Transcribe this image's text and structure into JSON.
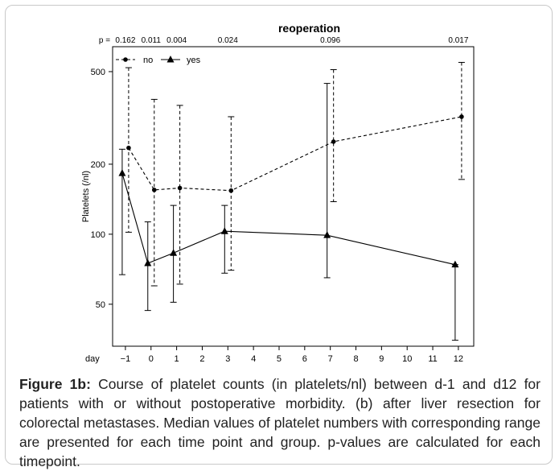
{
  "figure": {
    "caption_label": "Figure 1b:",
    "caption_text": " Course of platelet counts (in platelets/nl) between d-1 and d12 for patients with or without  postoperative morbidity. (b) after liver resection for colorectal metastases. Median values of platelet numbers with corresponding range are presented for each time point and group. p-values are calculated for each timepoint."
  },
  "chart_data": {
    "type": "line",
    "title": "reoperation",
    "ylabel": "Platelets (/nl)",
    "xlabel": "day",
    "y_scale": "log",
    "ylim": [
      33,
      640
    ],
    "xlim": [
      -1.5,
      12.6
    ],
    "x_ticks": [
      -1,
      0,
      1,
      2,
      3,
      4,
      5,
      6,
      7,
      8,
      9,
      10,
      11,
      12
    ],
    "x_tick_labels": [
      "−1",
      "0",
      "1",
      "2",
      "3",
      "4",
      "5",
      "6",
      "7",
      "8",
      "9",
      "10",
      "11",
      "12"
    ],
    "y_ticks": [
      50,
      100,
      200,
      500
    ],
    "p_label": "p =",
    "p_values": [
      {
        "day": -1,
        "label": "0.162"
      },
      {
        "day": 0,
        "label": "0.011"
      },
      {
        "day": 1,
        "label": "0.004"
      },
      {
        "day": 3,
        "label": "0.024"
      },
      {
        "day": 7,
        "label": "0.096"
      },
      {
        "day": 12,
        "label": "0.017"
      }
    ],
    "legend": {
      "placement": "top-left",
      "entries": [
        "no",
        "yes"
      ]
    },
    "series": [
      {
        "name": "no",
        "marker": "circle",
        "line": "dashed",
        "points": [
          {
            "x": -1,
            "y": 235,
            "low": 102,
            "high": 520
          },
          {
            "x": 0,
            "y": 155,
            "low": 60,
            "high": 380
          },
          {
            "x": 1,
            "y": 158,
            "low": 61,
            "high": 358
          },
          {
            "x": 3,
            "y": 154,
            "low": 70,
            "high": 320
          },
          {
            "x": 7,
            "y": 250,
            "low": 138,
            "high": 510
          },
          {
            "x": 12,
            "y": 320,
            "low": 172,
            "high": 548
          }
        ]
      },
      {
        "name": "yes",
        "marker": "triangle",
        "line": "solid",
        "points": [
          {
            "x": -1,
            "y": 183,
            "low": 67,
            "high": 232
          },
          {
            "x": 0,
            "y": 75,
            "low": 47,
            "high": 113
          },
          {
            "x": 1,
            "y": 83,
            "low": 51,
            "high": 133
          },
          {
            "x": 3,
            "y": 103,
            "low": 68,
            "high": 133
          },
          {
            "x": 7,
            "y": 99,
            "low": 65,
            "high": 445
          },
          {
            "x": 12,
            "y": 74,
            "low": 35,
            "high": 74
          }
        ]
      }
    ]
  }
}
